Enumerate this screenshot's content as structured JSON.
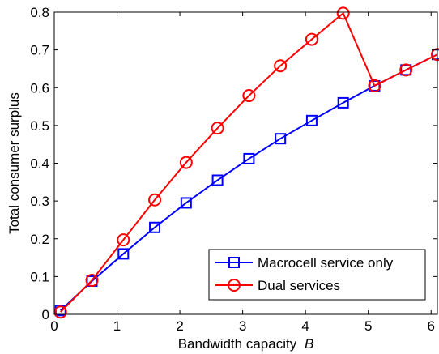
{
  "chart_data": {
    "type": "line",
    "title": "",
    "xlabel": "Bandwidth capacity",
    "xlabel_var": "B",
    "ylabel": "Total consumer surplus",
    "xlim": [
      0,
      6.1
    ],
    "ylim": [
      0,
      0.8
    ],
    "x_ticks": [
      0,
      1,
      2,
      3,
      4,
      5,
      6
    ],
    "x_tick_labels": [
      "0",
      "1",
      "2",
      "3",
      "4",
      "5",
      "6"
    ],
    "y_ticks": [
      0,
      0.1,
      0.2,
      0.3,
      0.4,
      0.5,
      0.6,
      0.7,
      0.8
    ],
    "y_tick_labels": [
      "0",
      "0.1",
      "0.2",
      "0.3",
      "0.4",
      "0.5",
      "0.6",
      "0.7",
      "0.8"
    ],
    "grid": false,
    "legend_position": "bottom-right",
    "x": [
      0.1,
      0.6,
      1.1,
      1.6,
      2.1,
      2.6,
      3.1,
      3.6,
      4.1,
      4.6,
      5.1,
      5.6,
      6.1
    ],
    "series": [
      {
        "name": "Macrocell service only",
        "color": "#0000ff",
        "marker": "square",
        "values": [
          0.01,
          0.088,
          0.16,
          0.23,
          0.295,
          0.355,
          0.412,
          0.465,
          0.513,
          0.56,
          0.605,
          0.647,
          0.688
        ]
      },
      {
        "name": "Dual services",
        "color": "#ff0000",
        "marker": "circle",
        "values": [
          0.006,
          0.09,
          0.197,
          0.303,
          0.402,
          0.493,
          0.579,
          0.658,
          0.728,
          0.797,
          0.605,
          0.647,
          0.688
        ]
      }
    ]
  }
}
